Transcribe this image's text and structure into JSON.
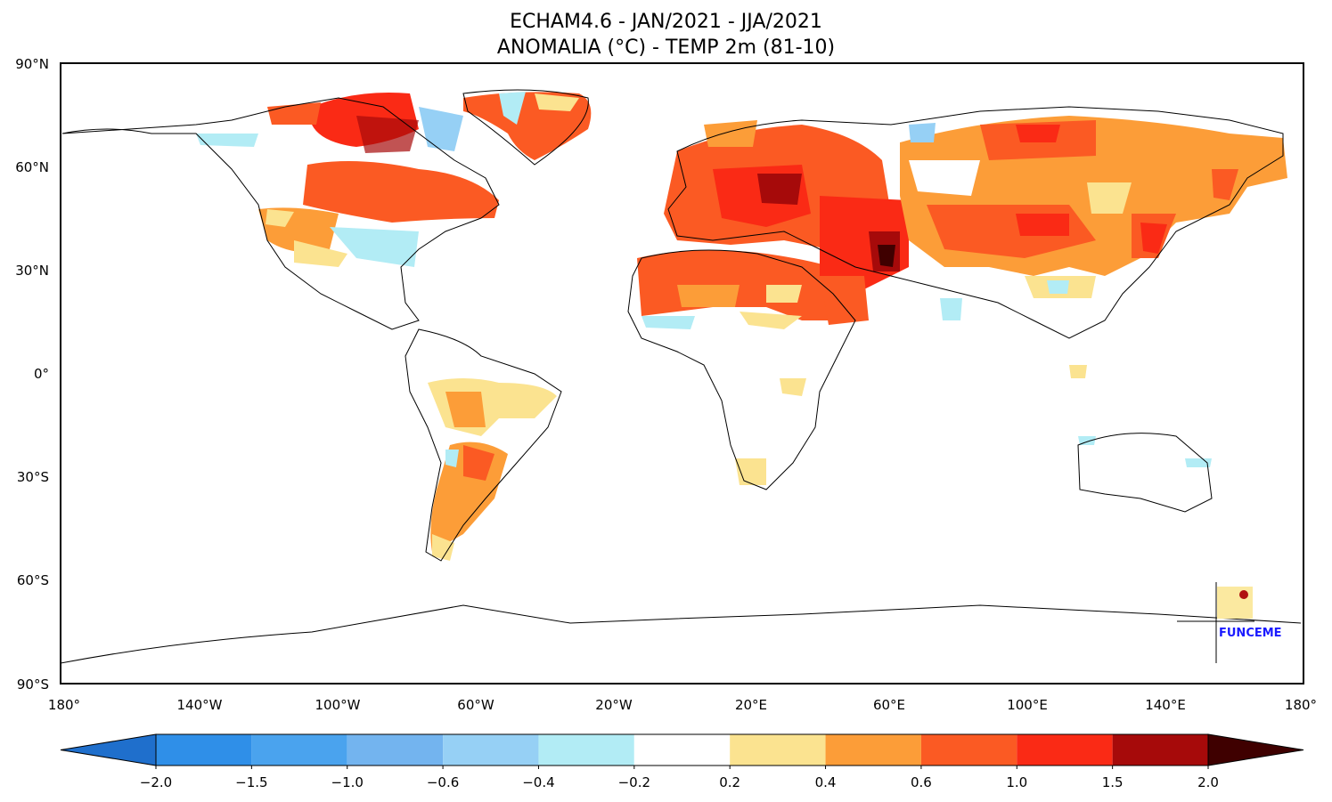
{
  "title": {
    "line1": "ECHAM4.6 - JAN/2021 - JJA/2021",
    "line2": "ANOMALIA (°C) - TEMP 2m (81-10)"
  },
  "axes": {
    "lat_labels": [
      "90°N",
      "60°N",
      "30°N",
      "0°",
      "30°S",
      "60°S",
      "90°S"
    ],
    "lon_labels": [
      "180°",
      "140°W",
      "100°W",
      "60°W",
      "20°W",
      "20°E",
      "60°E",
      "100°E",
      "140°E",
      "180°"
    ]
  },
  "colorbar": {
    "labels": [
      "−2.0",
      "−1.5",
      "−1.0",
      "−0.6",
      "−0.4",
      "−0.2",
      "0.2",
      "0.4",
      "0.6",
      "1.0",
      "1.5",
      "2.0"
    ],
    "colors": [
      "#1f6fcc",
      "#2f8fe8",
      "#4aa3ee",
      "#73b4ef",
      "#96d0f5",
      "#b2ecf5",
      "#ffffff",
      "#fbe390",
      "#fc9d38",
      "#fb5a23",
      "#fa2a15",
      "#a60a0a",
      "#3f0000"
    ]
  },
  "logo": {
    "text": "FUNCEME"
  }
}
